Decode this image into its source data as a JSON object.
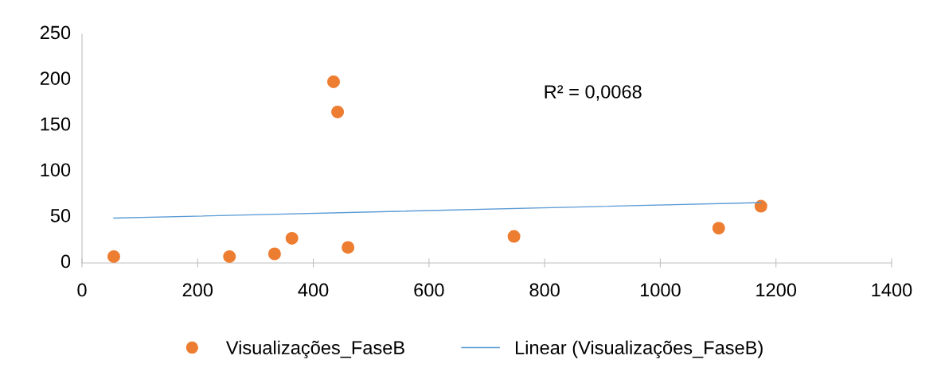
{
  "chart_data": {
    "type": "scatter",
    "x": [
      55,
      255,
      333,
      363,
      435,
      442,
      460,
      747,
      1101,
      1174
    ],
    "series": [
      {
        "name": "Visualizações_FaseB",
        "color": "#ed7d31",
        "marker": "circle",
        "values": [
          7,
          7,
          10,
          27,
          198,
          165,
          17,
          29,
          38,
          62
        ]
      },
      {
        "name": "Linear (Visualizações_FaseB)",
        "type": "line",
        "color": "#5b9bd5",
        "x": [
          55,
          1174
        ],
        "values": [
          49,
          66
        ]
      }
    ],
    "xlim": [
      0,
      1400
    ],
    "xticks": [
      0,
      200,
      400,
      600,
      800,
      1000,
      1200,
      1400
    ],
    "ylim": [
      0,
      250
    ],
    "yticks": [
      0,
      50,
      100,
      150,
      200,
      250
    ],
    "annotations": [
      "R² = 0,0068"
    ],
    "legend": "bottom",
    "grid": false
  }
}
